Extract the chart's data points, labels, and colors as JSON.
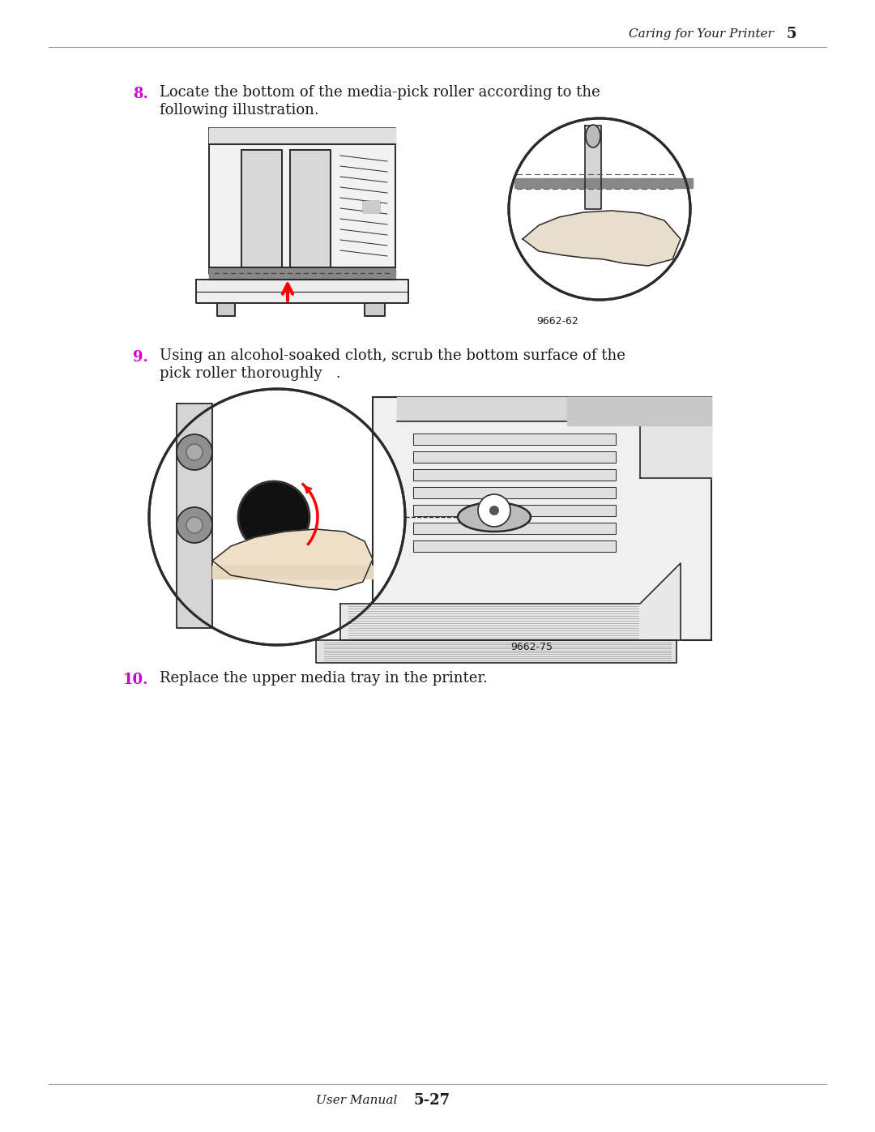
{
  "background_color": "#ffffff",
  "page_width": 10.8,
  "page_height": 13.97,
  "header_text": "Caring for Your Printer",
  "header_number": "5",
  "footer_text": "User Manual",
  "footer_number": "5-27",
  "step8_number": "8.",
  "step8_number_color": "#cc00cc",
  "step8_text_line1": "Locate the bottom of the media-pick roller according to the",
  "step8_text_line2": "following illustration.",
  "step9_number": "9.",
  "step9_number_color": "#cc00cc",
  "step9_text_line1": "Using an alcohol-soaked cloth, scrub the bottom surface of the",
  "step9_text_line2": "pick roller thoroughly   .",
  "step10_number": "10.",
  "step10_number_color": "#cc00cc",
  "step10_text": "Replace the upper media tray in the printer.",
  "fig1_label": "9662-62",
  "fig2_label": "9662-75",
  "text_color": "#1a1a1a",
  "line_color": "#2a2a2a",
  "font_size_body": 13,
  "font_size_header": 12,
  "font_size_footer": 12,
  "font_size_fig_label": 9
}
